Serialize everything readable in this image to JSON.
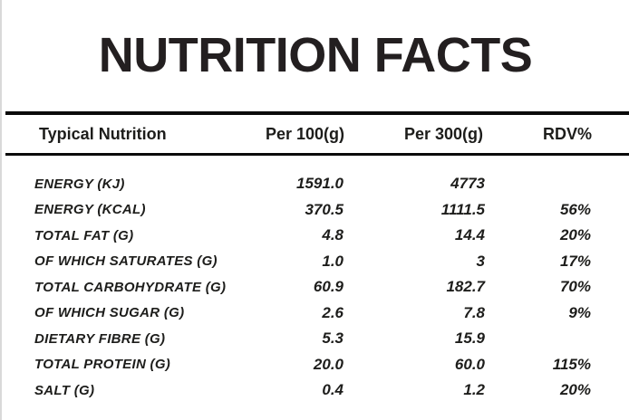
{
  "title": "NUTRITION FACTS",
  "table": {
    "columns": [
      "Typical Nutrition",
      "Per 100(g)",
      "Per 300(g)",
      "RDV%"
    ],
    "rows": [
      {
        "label": "ENERGY (KJ)",
        "per100": "1591.0",
        "per300": "4773",
        "rdv": ""
      },
      {
        "label": "ENERGY (KCAL)",
        "per100": "370.5",
        "per300": "1111.5",
        "rdv": "56%"
      },
      {
        "label": "TOTAL FAT (G)",
        "per100": "4.8",
        "per300": "14.4",
        "rdv": "20%"
      },
      {
        "label": "OF WHICH SATURATES (G)",
        "per100": "1.0",
        "per300": "3",
        "rdv": "17%"
      },
      {
        "label": "TOTAL CARBOHYDRATE (G)",
        "per100": "60.9",
        "per300": "182.7",
        "rdv": "70%"
      },
      {
        "label": "OF WHICH SUGAR (G)",
        "per100": "2.6",
        "per300": "7.8",
        "rdv": "9%"
      },
      {
        "label": "DIETARY FIBRE (G)",
        "per100": "5.3",
        "per300": "15.9",
        "rdv": ""
      },
      {
        "label": "TOTAL PROTEIN (G)",
        "per100": "20.0",
        "per300": "60.0",
        "rdv": "115%"
      },
      {
        "label": "SALT (G)",
        "per100": "0.4",
        "per300": "1.2",
        "rdv": "20%"
      }
    ]
  },
  "colors": {
    "text": "#1d1d1b",
    "rule": "#0a0a0a",
    "background": "#ffffff",
    "edge_border": "#d9d9d9"
  }
}
